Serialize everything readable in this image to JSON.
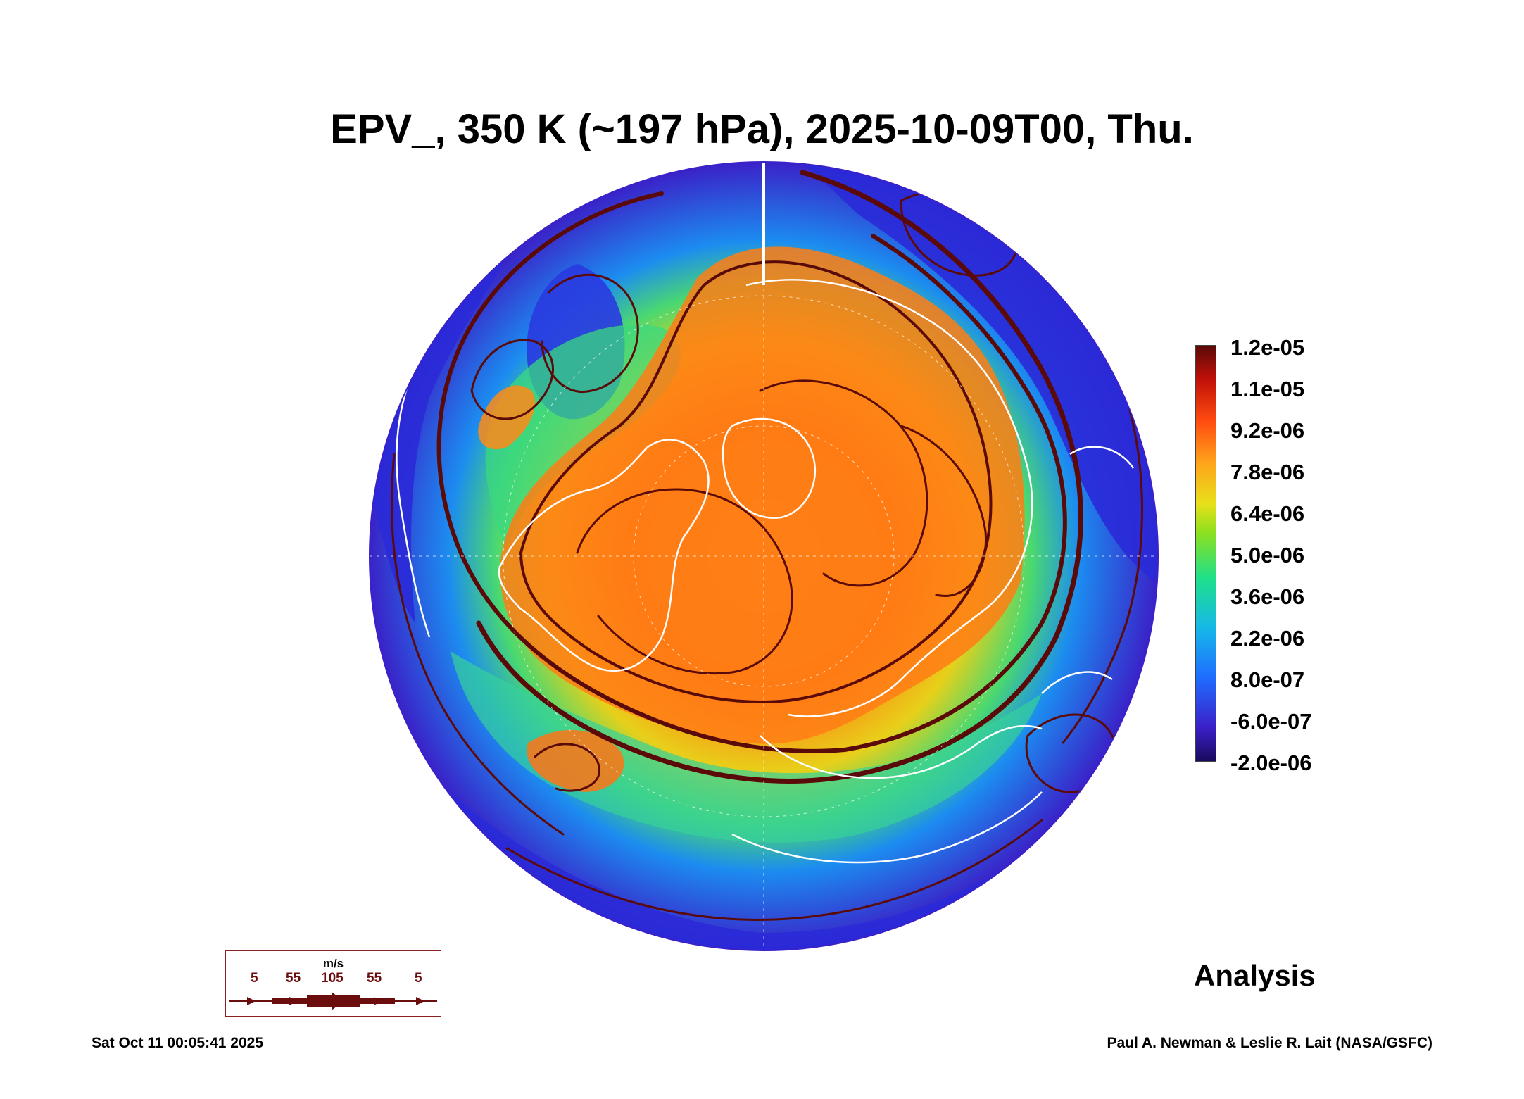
{
  "title": "EPV_, 350 K (~197 hPa), 2025-10-09T00, Thu.",
  "colorbar": {
    "labels": [
      "1.2e-05",
      "1.1e-05",
      "9.2e-06",
      "7.8e-06",
      "6.4e-06",
      "5.0e-06",
      "3.6e-06",
      "2.2e-06",
      "8.0e-07",
      "-6.0e-07",
      "-2.0e-06"
    ]
  },
  "legend": {
    "unit": "m/s",
    "speeds": [
      "5",
      "55",
      "105",
      "55",
      "5"
    ]
  },
  "analysis_label": "Analysis",
  "timestamp": "Sat Oct 11 00:05:41 2025",
  "credit": "Paul A. Newman & Leslie R. Lait (NASA/GSFC)",
  "colors": {
    "ocean_low": "#2a1ed0",
    "streamline": "#5a0a08",
    "coast": "#ffffff"
  }
}
